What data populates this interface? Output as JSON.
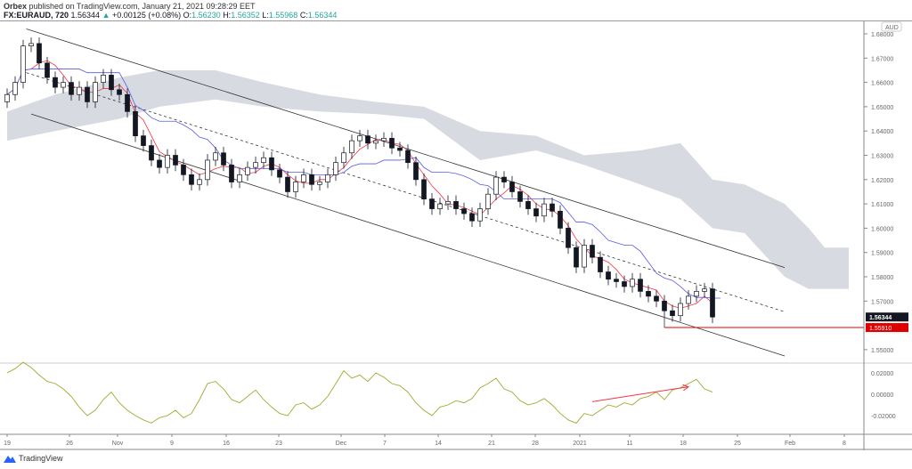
{
  "header": {
    "publisher": "Orbex",
    "published_text": "published on TradingView.com, January 21, 2021 09:28:29 EET",
    "symbol": "FX:EURAUD, 720",
    "last": "1.56344",
    "change": "+0.00125 (+0.08%)",
    "o_label": "O:",
    "o": "1.56230",
    "h_label": "H:",
    "h": "1.56352",
    "l_label": "L:",
    "l": "1.55968",
    "c_label": "C:",
    "c": "1.56344",
    "change_direction_icon": "triangle-up-icon"
  },
  "price_axis": {
    "currency": "AUD",
    "ticks": [
      "1.68000",
      "1.67000",
      "1.66000",
      "1.65000",
      "1.64000",
      "1.63000",
      "1.62000",
      "1.61000",
      "1.60000",
      "1.59000",
      "1.58000",
      "1.57000",
      "1.55000"
    ],
    "current_price_label": "1.56344",
    "support_label": "1.55910"
  },
  "oscillator_axis": {
    "ticks": [
      "0.02000",
      "0.00000",
      "-0.02000"
    ]
  },
  "time_axis": {
    "labels": [
      "19",
      "26",
      "Nov",
      "9",
      "16",
      "23",
      "Dec",
      "7",
      "14",
      "21",
      "28",
      "2021",
      "11",
      "18",
      "25",
      "Feb",
      "8"
    ]
  },
  "footer": {
    "brand": "TradingView"
  },
  "colors": {
    "up_candle": "#ffffff",
    "down_candle": "#131722",
    "conversion_line": "#f23645",
    "base_line": "#5a5ae6",
    "cloud": "#d1d4dc",
    "support": "#e00000",
    "oscillator": "#a3a830",
    "arrow": "#f23645",
    "change_up": "#26a69a"
  },
  "chart_data": {
    "type": "candlestick",
    "ylim": [
      1.545,
      1.683
    ],
    "closes": [
      1.655,
      1.66,
      1.675,
      1.676,
      1.668,
      1.662,
      1.658,
      1.66,
      1.655,
      1.658,
      1.652,
      1.66,
      1.663,
      1.657,
      1.655,
      1.648,
      1.638,
      1.634,
      1.628,
      1.625,
      1.63,
      1.626,
      1.622,
      1.618,
      1.62,
      1.628,
      1.631,
      1.626,
      1.619,
      1.622,
      1.625,
      1.627,
      1.629,
      1.624,
      1.621,
      1.615,
      1.619,
      1.622,
      1.618,
      1.619,
      1.622,
      1.627,
      1.631,
      1.636,
      1.638,
      1.635,
      1.636,
      1.637,
      1.633,
      1.632,
      1.627,
      1.62,
      1.612,
      1.608,
      1.61,
      1.611,
      1.608,
      1.606,
      1.603,
      1.608,
      1.614,
      1.621,
      1.619,
      1.615,
      1.611,
      1.608,
      1.605,
      1.61,
      1.607,
      1.6,
      1.592,
      1.584,
      1.593,
      1.588,
      1.582,
      1.579,
      1.578,
      1.576,
      1.579,
      1.574,
      1.572,
      1.57,
      1.566,
      1.564,
      1.569,
      1.572,
      1.574,
      1.575,
      1.56344
    ],
    "cloud": [
      {
        "bar": 0,
        "top": 1.648,
        "bottom": 1.636
      },
      {
        "bar": 6,
        "top": 1.655,
        "bottom": 1.64
      },
      {
        "bar": 14,
        "top": 1.662,
        "bottom": 1.645
      },
      {
        "bar": 19,
        "top": 1.665,
        "bottom": 1.65
      },
      {
        "bar": 26,
        "top": 1.665,
        "bottom": 1.653
      },
      {
        "bar": 32,
        "top": 1.66,
        "bottom": 1.65
      },
      {
        "bar": 39,
        "top": 1.655,
        "bottom": 1.648
      },
      {
        "bar": 46,
        "top": 1.652,
        "bottom": 1.647
      },
      {
        "bar": 52,
        "top": 1.65,
        "bottom": 1.645
      },
      {
        "bar": 59,
        "top": 1.64,
        "bottom": 1.628
      },
      {
        "bar": 66,
        "top": 1.638,
        "bottom": 1.632
      },
      {
        "bar": 72,
        "top": 1.63,
        "bottom": 1.626
      },
      {
        "bar": 79,
        "top": 1.632,
        "bottom": 1.618
      },
      {
        "bar": 84,
        "top": 1.635,
        "bottom": 1.612
      },
      {
        "bar": 88,
        "top": 1.62,
        "bottom": 1.6
      },
      {
        "bar": 92,
        "top": 1.618,
        "bottom": 1.598
      },
      {
        "bar": 97,
        "top": 1.61,
        "bottom": 1.58
      },
      {
        "bar": 100,
        "top": 1.6,
        "bottom": 1.575
      },
      {
        "bar": 102,
        "top": 1.592,
        "bottom": 1.575
      },
      {
        "bar": 105,
        "top": 1.592,
        "bottom": 1.575
      }
    ],
    "channel": {
      "upper": [
        {
          "bar": 2.4,
          "price": 1.682
        },
        {
          "bar": 97,
          "price": 1.5838
        }
      ],
      "middle": [
        {
          "bar": 2.4,
          "price": 1.664
        },
        {
          "bar": 97,
          "price": 1.5656
        }
      ],
      "lower": [
        {
          "bar": 3,
          "price": 1.647
        },
        {
          "bar": 97,
          "price": 1.5474
        }
      ]
    },
    "support_level": 1.5591,
    "support_start_bar": 82,
    "oscillator": {
      "ylim": [
        -0.03,
        0.03
      ],
      "values": [
        0.02,
        0.024,
        0.03,
        0.025,
        0.018,
        0.012,
        0.01,
        0.005,
        -0.002,
        -0.012,
        -0.02,
        -0.015,
        -0.005,
        0.002,
        -0.008,
        -0.015,
        -0.02,
        -0.024,
        -0.027,
        -0.022,
        -0.02,
        -0.015,
        -0.022,
        -0.018,
        -0.005,
        0.01,
        0.012,
        0.005,
        -0.005,
        -0.008,
        -0.002,
        0.004,
        -0.005,
        -0.012,
        -0.018,
        -0.02,
        -0.01,
        -0.008,
        -0.014,
        -0.01,
        -0.002,
        0.01,
        0.022,
        0.015,
        0.018,
        0.012,
        0.02,
        0.016,
        0.01,
        0.008,
        0.002,
        -0.008,
        -0.015,
        -0.02,
        -0.012,
        -0.01,
        -0.006,
        -0.008,
        -0.004,
        0.006,
        0.01,
        0.015,
        0.005,
        0.002,
        -0.006,
        -0.01,
        -0.008,
        -0.004,
        -0.01,
        -0.018,
        -0.024,
        -0.027,
        -0.018,
        -0.02,
        -0.015,
        -0.01,
        -0.012,
        -0.008,
        -0.01,
        -0.004,
        -0.002,
        0.002,
        -0.005,
        0.004,
        0.006,
        0.01,
        0.014,
        0.005,
        0.002
      ],
      "arrow": [
        {
          "bar": 73,
          "value": -0.007
        },
        {
          "bar": 85,
          "value": 0.007
        }
      ]
    }
  }
}
